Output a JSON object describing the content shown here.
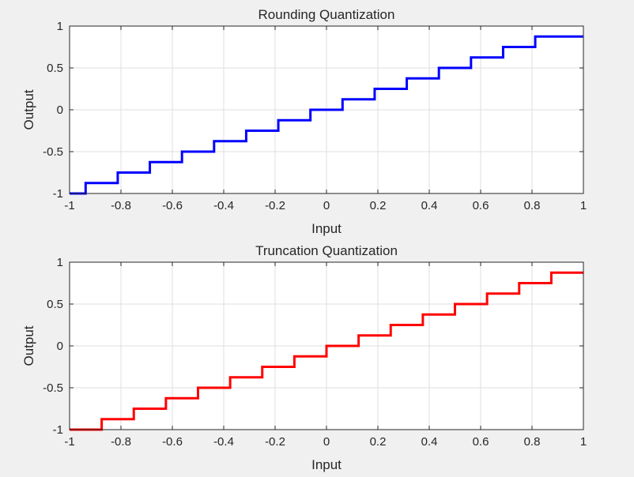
{
  "chart_data": [
    {
      "type": "line",
      "step": true,
      "title": "Rounding Quantization",
      "xlabel": "Input",
      "ylabel": "Output",
      "xlim": [
        -1,
        1
      ],
      "ylim": [
        -1,
        1
      ],
      "xticks": [
        -1,
        -0.8,
        -0.6,
        -0.4,
        -0.2,
        0,
        0.2,
        0.4,
        0.6,
        0.8,
        1
      ],
      "xtick_labels": [
        "-1",
        "-0.8",
        "-0.6",
        "-0.4",
        "-0.2",
        "0",
        "0.2",
        "0.4",
        "0.6",
        "0.8",
        "1"
      ],
      "yticks": [
        -1,
        -0.5,
        0,
        0.5,
        1
      ],
      "ytick_labels": [
        "-1",
        "-0.5",
        "0",
        "0.5",
        "1"
      ],
      "grid": true,
      "series": [
        {
          "color": "#0000ff",
          "x": [
            -1,
            -0.9375,
            -0.9375,
            -0.8125,
            -0.8125,
            -0.6875,
            -0.6875,
            -0.5625,
            -0.5625,
            -0.4375,
            -0.4375,
            -0.3125,
            -0.3125,
            -0.1875,
            -0.1875,
            -0.0625,
            -0.0625,
            0.0625,
            0.0625,
            0.1875,
            0.1875,
            0.3125,
            0.3125,
            0.4375,
            0.4375,
            0.5625,
            0.5625,
            0.6875,
            0.6875,
            0.8125,
            0.8125,
            1
          ],
          "y": [
            -1,
            -1,
            -0.875,
            -0.875,
            -0.75,
            -0.75,
            -0.625,
            -0.625,
            -0.5,
            -0.5,
            -0.375,
            -0.375,
            -0.25,
            -0.25,
            -0.125,
            -0.125,
            0,
            0,
            0.125,
            0.125,
            0.25,
            0.25,
            0.375,
            0.375,
            0.5,
            0.5,
            0.625,
            0.625,
            0.75,
            0.75,
            0.875,
            0.875
          ]
        }
      ]
    },
    {
      "type": "line",
      "step": true,
      "title": "Truncation Quantization",
      "xlabel": "Input",
      "ylabel": "Output",
      "xlim": [
        -1,
        1
      ],
      "ylim": [
        -1,
        1
      ],
      "xticks": [
        -1,
        -0.8,
        -0.6,
        -0.4,
        -0.2,
        0,
        0.2,
        0.4,
        0.6,
        0.8,
        1
      ],
      "xtick_labels": [
        "-1",
        "-0.8",
        "-0.6",
        "-0.4",
        "-0.2",
        "0",
        "0.2",
        "0.4",
        "0.6",
        "0.8",
        "1"
      ],
      "yticks": [
        -1,
        -0.5,
        0,
        0.5,
        1
      ],
      "ytick_labels": [
        "-1",
        "-0.5",
        "0",
        "0.5",
        "1"
      ],
      "grid": true,
      "series": [
        {
          "color": "#ff0000",
          "x": [
            -1,
            -0.875,
            -0.875,
            -0.75,
            -0.75,
            -0.625,
            -0.625,
            -0.5,
            -0.5,
            -0.375,
            -0.375,
            -0.25,
            -0.25,
            -0.125,
            -0.125,
            0,
            0,
            0.125,
            0.125,
            0.25,
            0.25,
            0.375,
            0.375,
            0.5,
            0.5,
            0.625,
            0.625,
            0.75,
            0.75,
            0.875,
            0.875,
            1
          ],
          "y": [
            -1,
            -1,
            -0.875,
            -0.875,
            -0.75,
            -0.75,
            -0.625,
            -0.625,
            -0.5,
            -0.5,
            -0.375,
            -0.375,
            -0.25,
            -0.25,
            -0.125,
            -0.125,
            0,
            0,
            0.125,
            0.125,
            0.25,
            0.25,
            0.375,
            0.375,
            0.5,
            0.5,
            0.625,
            0.625,
            0.75,
            0.75,
            0.875,
            0.875
          ]
        }
      ]
    }
  ]
}
